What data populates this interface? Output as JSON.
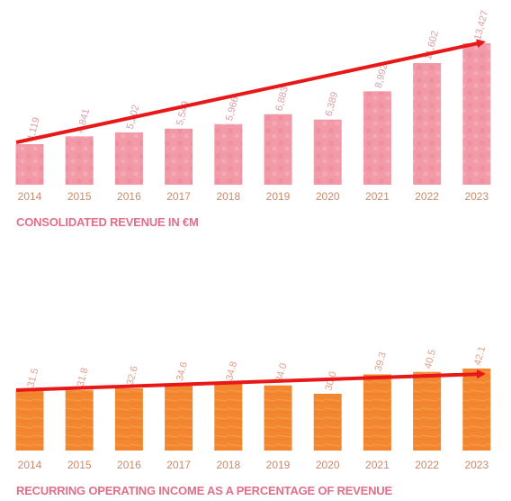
{
  "chart_data": [
    {
      "type": "bar",
      "title": "CONSOLIDATED REVENUE IN €M",
      "categories": [
        "2014",
        "2015",
        "2016",
        "2017",
        "2018",
        "2019",
        "2020",
        "2021",
        "2022",
        "2023"
      ],
      "values": [
        4119,
        4841,
        5202,
        5549,
        5966,
        6883,
        6389,
        8992,
        11602,
        13427
      ],
      "value_labels": [
        "4,119",
        "4,841",
        "5,202",
        "5,549",
        "5,966",
        "6,883",
        "6,389",
        "8,992",
        "11,602",
        "13,427"
      ],
      "ylim": [
        0,
        13427
      ],
      "grid": false,
      "trend_arrow": true,
      "colors": {
        "bar": "#f29aa8",
        "bar_texture": "#e97a90",
        "label": "#d7a0a8",
        "tick": "#c98a6a",
        "title": "#e0708a",
        "arrow": "#e81818"
      }
    },
    {
      "type": "bar",
      "title": "RECURRING OPERATING INCOME AS A PERCENTAGE OF REVENUE",
      "categories": [
        "2014",
        "2015",
        "2016",
        "2017",
        "2018",
        "2019",
        "2020",
        "2021",
        "2022",
        "2023"
      ],
      "values": [
        31.5,
        31.8,
        32.6,
        34.6,
        34.8,
        34.0,
        30.0,
        39.3,
        40.5,
        42.1
      ],
      "value_labels": [
        "31.5",
        "31.8",
        "32.6",
        "34.6",
        "34.8",
        "34.0",
        "30.0",
        "39.3",
        "40.5",
        "42.1"
      ],
      "ylim": [
        0,
        42.1
      ],
      "grid": false,
      "trend_arrow": true,
      "colors": {
        "bar": "#f3872f",
        "bar_texture": "#f7a660",
        "label": "#e3a08a",
        "tick": "#c98a6a",
        "title": "#e0708a",
        "arrow": "#e81818"
      }
    }
  ]
}
